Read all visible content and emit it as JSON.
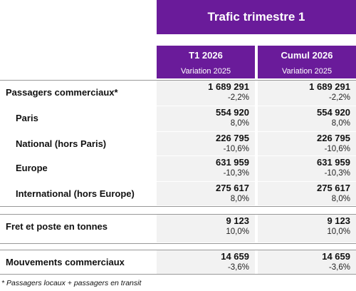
{
  "header": {
    "title": "Trafic trimestre 1",
    "columns": [
      {
        "title": "T1 2026",
        "subtitle": "Variation 2025"
      },
      {
        "title": "Cumul 2026",
        "subtitle": "Variation 2025"
      }
    ]
  },
  "table": {
    "rows": [
      {
        "label": "Passagers commerciaux*",
        "cells": [
          {
            "value": "1 689 291",
            "variation": "-2,2%"
          },
          {
            "value": "1 689 291",
            "variation": "-2,2%"
          }
        ]
      },
      {
        "label": "Paris",
        "cells": [
          {
            "value": "554 920",
            "variation": "8,0%"
          },
          {
            "value": "554 920",
            "variation": "8,0%"
          }
        ]
      },
      {
        "label": "National (hors Paris)",
        "cells": [
          {
            "value": "226 795",
            "variation": "-10,6%"
          },
          {
            "value": "226 795",
            "variation": "-10,6%"
          }
        ]
      },
      {
        "label": "Europe",
        "cells": [
          {
            "value": "631 959",
            "variation": "-10,3%"
          },
          {
            "value": "631 959",
            "variation": "-10,3%"
          }
        ]
      },
      {
        "label": "International (hors Europe)",
        "cells": [
          {
            "value": "275 617",
            "variation": "8,0%"
          },
          {
            "value": "275 617",
            "variation": "8,0%"
          }
        ]
      },
      {
        "label": "Fret et poste en tonnes",
        "cells": [
          {
            "value": "9 123",
            "variation": "10,0%"
          },
          {
            "value": "9 123",
            "variation": "10,0%"
          }
        ]
      },
      {
        "label": "Mouvements commerciaux",
        "cells": [
          {
            "value": "14 659",
            "variation": "-3,6%"
          },
          {
            "value": "14 659",
            "variation": "-3,6%"
          }
        ]
      }
    ]
  },
  "footnote": "* Passagers locaux + passagers en transit"
}
